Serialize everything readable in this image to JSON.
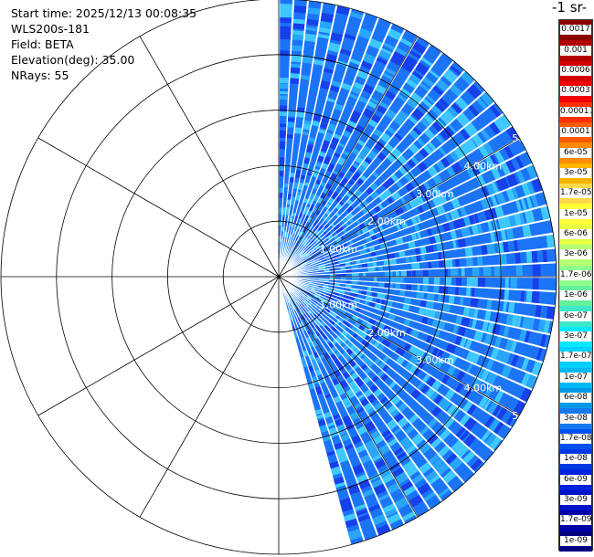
{
  "info": {
    "start_time": "Start time: 2025/12/13 00:08:35",
    "instrument": "WLS200s-181",
    "field": "Field: BETA",
    "elevation": "Elevation(deg): 35.00",
    "nrays": "NRays: 55"
  },
  "colorbar": {
    "units_label": "-1 sr-",
    "ticks": [
      "0.0017",
      "0.001",
      "0.0006",
      "0.0003",
      "0.00017",
      "0.0001",
      "6e-05",
      "3e-05",
      "1.7e-05",
      "1e-05",
      "6e-06",
      "3e-06",
      "1.7e-06",
      "1e-06",
      "6e-07",
      "3e-07",
      "1.7e-07",
      "1e-07",
      "6e-08",
      "3e-08",
      "1.7e-08",
      "1e-08",
      "6e-09",
      "3e-09",
      "1.7e-09",
      "1e-09"
    ],
    "colors": [
      "#8b0000",
      "#b00000",
      "#d40000",
      "#f00000",
      "#ff3000",
      "#ff5a00",
      "#ff8a00",
      "#ffb400",
      "#ffd84a",
      "#ffff38",
      "#e6ff44",
      "#b4ff74",
      "#8cff8c",
      "#64f09c",
      "#3ce8c8",
      "#00e8ff",
      "#00d0ff",
      "#00b8f4",
      "#0098e8",
      "#1478f0",
      "#0050f0",
      "#0038e4",
      "#0022dc",
      "#0010c8",
      "#0000a8",
      "#000080"
    ]
  },
  "chart_data": {
    "type": "polar-sector (PPI scan)",
    "field": "BETA",
    "elevation_deg": 35.0,
    "nrays": 55,
    "azimuth_range_deg": [
      0,
      165
    ],
    "range_rings_km": [
      1.0,
      2.0,
      3.0,
      4.0,
      5.0
    ],
    "max_range_km": 5.0,
    "ring_labels": [
      "1.00km",
      "2.00km",
      "3.00km",
      "4.00km",
      "5.00km"
    ],
    "radial_lines_deg": [
      0,
      30,
      60,
      90,
      120,
      150,
      180,
      210,
      240,
      270,
      300,
      330
    ],
    "typical_value_range": [
      3e-09,
      1e-07
    ],
    "background_color": "#1b74f6",
    "secondary_colors": [
      "#2aa6f8",
      "#1640ea",
      "#3fc8ff"
    ]
  }
}
